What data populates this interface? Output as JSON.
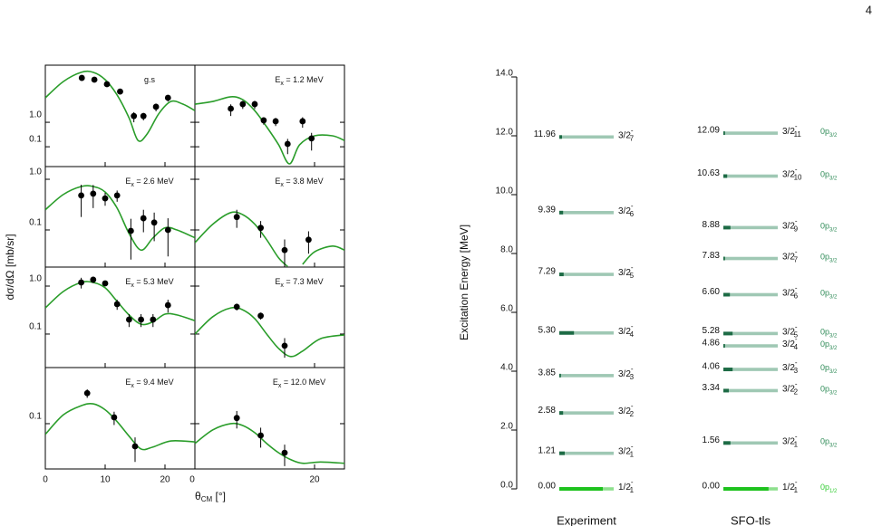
{
  "page_number": "4",
  "cross_sections": {
    "y_label": "dσ/dΩ [mb/sr]",
    "x_label": [
      "θ",
      "CM",
      " [°]"
    ],
    "xlim": [
      0,
      25
    ],
    "columns": [
      {
        "xticks": [
          0,
          10,
          20
        ]
      },
      {
        "xticks": [
          0,
          20
        ]
      }
    ],
    "rows": [
      {
        "ylim": [
          0.0155,
          215
        ],
        "yticks": [
          {
            "value": 1,
            "label": "1.0"
          },
          0.1
        ]
      },
      {
        "ylim": [
          0.0185,
          1.78
        ],
        "yticks": [
          {
            "value": 1,
            "label": "1.0"
          },
          0.1
        ]
      },
      {
        "ylim": [
          0.02,
          2.49
        ],
        "yticks": [
          {
            "value": 1,
            "label": "1.0"
          },
          0.1
        ]
      },
      {
        "ylim": [
          0.0123,
          1.34
        ],
        "yticks": [
          0.1
        ]
      }
    ],
    "panels": [
      {
        "label": [
          "g.s"
        ],
        "row": 0,
        "col": 0,
        "points": {
          "x": [
            6.1,
            8.2,
            10.3,
            12.5,
            14.8,
            16.4,
            18.5,
            20.5
          ],
          "y": [
            65,
            55,
            36,
            18,
            1.8,
            1.8,
            4.3,
            10
          ],
          "err": [
            15,
            12,
            8,
            3,
            0.8,
            0.6,
            1.5,
            3
          ]
        },
        "curve": {
          "x": [
            0,
            3,
            6,
            8,
            10,
            12,
            14,
            15.5,
            17,
            19,
            21,
            23,
            25
          ],
          "y": [
            10,
            46,
            110,
            110,
            55,
            13,
            1.5,
            0.18,
            0.33,
            2.3,
            7.1,
            5.5,
            3.0
          ]
        }
      },
      {
        "label": [
          "E",
          "x",
          " = 1.2 MeV"
        ],
        "row": 0,
        "col": 1,
        "points": {
          "x": [
            6,
            8,
            10,
            11.5,
            13.5,
            15.5,
            18,
            19.5
          ],
          "y": [
            3.6,
            5.5,
            5.5,
            1.2,
            1.1,
            0.13,
            1.1,
            0.22
          ],
          "err": [
            1.8,
            2,
            2,
            0.4,
            0.4,
            0.08,
            0.5,
            0.15
          ]
        },
        "curve": {
          "x": [
            0,
            3,
            6,
            8,
            10,
            12,
            14,
            15.8,
            17.5,
            20,
            23,
            25
          ],
          "y": [
            5.5,
            7.1,
            11,
            8.4,
            3.0,
            0.65,
            0.12,
            0.02,
            0.12,
            0.28,
            0.28,
            0.18
          ]
        }
      },
      {
        "label": [
          "E",
          "x",
          " = 2.6 MeV"
        ],
        "row": 1,
        "col": 0,
        "points": {
          "x": [
            6,
            8,
            10,
            12,
            14.3,
            16.4,
            18.2,
            20.5
          ],
          "y": [
            0.48,
            0.52,
            0.42,
            0.48,
            0.096,
            0.17,
            0.14,
            0.1
          ],
          "err": [
            0.3,
            0.25,
            0.12,
            0.12,
            0.07,
            0.08,
            0.08,
            0.07
          ]
        },
        "curve": {
          "x": [
            0,
            3,
            6,
            8,
            10,
            12,
            14,
            16,
            18,
            20,
            22,
            25
          ],
          "y": [
            0.25,
            0.5,
            0.72,
            0.72,
            0.56,
            0.27,
            0.085,
            0.04,
            0.07,
            0.11,
            0.1,
            0.07
          ]
        }
      },
      {
        "label": [
          "E",
          "x",
          " = 3.8 MeV"
        ],
        "row": 1,
        "col": 1,
        "points": {
          "x": [
            7,
            11,
            15,
            19
          ],
          "y": [
            0.18,
            0.11,
            0.04,
            0.064
          ],
          "err": [
            0.07,
            0.04,
            0.025,
            0.03
          ]
        },
        "curve": {
          "x": [
            0,
            3,
            6,
            8,
            10,
            12,
            14,
            15.5,
            16.7,
            18,
            20,
            23,
            25
          ],
          "y": [
            0.056,
            0.13,
            0.22,
            0.2,
            0.13,
            0.064,
            0.028,
            0.019,
            null,
            0.021,
            0.037,
            0.048,
            0.04
          ]
        }
      },
      {
        "label": [
          "E",
          "x",
          " = 5.3 MeV"
        ],
        "row": 2,
        "col": 0,
        "points": {
          "x": [
            6,
            8,
            10,
            12,
            14,
            16,
            18,
            20.5
          ],
          "y": [
            1.19,
            1.36,
            1.14,
            0.42,
            0.2,
            0.2,
            0.2,
            0.4
          ],
          "err": [
            0.3,
            0.2,
            0.15,
            0.1,
            0.06,
            0.06,
            0.06,
            0.12
          ]
        },
        "curve": {
          "x": [
            0,
            3,
            6,
            8,
            10,
            12,
            14,
            16,
            18,
            20,
            22,
            25
          ],
          "y": [
            0.35,
            0.77,
            1.19,
            1.19,
            0.92,
            0.48,
            0.25,
            0.16,
            0.18,
            0.26,
            0.25,
            0.19
          ]
        }
      },
      {
        "label": [
          "E",
          "x",
          " = 7.3 MeV"
        ],
        "row": 2,
        "col": 1,
        "points": {
          "x": [
            7,
            11,
            15
          ],
          "y": [
            0.37,
            0.24,
            0.057
          ],
          "err": [
            0.06,
            0.04,
            0.025
          ]
        },
        "curve": {
          "x": [
            0,
            3,
            6,
            8,
            10,
            12,
            14,
            16,
            18,
            21,
            25
          ],
          "y": [
            0.1,
            0.23,
            0.35,
            0.32,
            0.21,
            0.1,
            0.05,
            0.034,
            0.044,
            0.08,
            0.096
          ]
        }
      },
      {
        "label": [
          "E",
          "x",
          " = 9.4 MeV"
        ],
        "row": 3,
        "col": 0,
        "points": {
          "x": [
            7,
            11.5,
            15
          ],
          "y": [
            0.41,
            0.134,
            0.035
          ],
          "err": [
            0.08,
            0.04,
            0.018
          ]
        },
        "curve": {
          "x": [
            0,
            3,
            6,
            8,
            10,
            12,
            14,
            16,
            18,
            21,
            25
          ],
          "y": [
            0.061,
            0.15,
            0.23,
            0.25,
            0.19,
            0.11,
            0.056,
            0.031,
            0.034,
            0.045,
            0.043
          ]
        }
      },
      {
        "label": [
          "E",
          "x",
          " = 12.0 MeV"
        ],
        "row": 3,
        "col": 1,
        "points": {
          "x": [
            7,
            11,
            15
          ],
          "y": [
            0.13,
            0.058,
            0.026
          ],
          "err": [
            0.05,
            0.025,
            0.012
          ]
        },
        "curve": {
          "x": [
            0,
            3,
            6,
            8,
            10,
            12,
            14,
            16,
            18,
            21,
            25
          ],
          "y": [
            0.04,
            0.075,
            0.1,
            0.092,
            0.066,
            0.04,
            0.026,
            0.019,
            0.016,
            0.017,
            0.016
          ]
        }
      }
    ]
  },
  "level_scheme": {
    "y_label": "Excitation Energy [MeV]",
    "ylim": [
      0,
      14
    ],
    "yticks": [
      {
        "value": 0,
        "label": "0.0"
      },
      {
        "value": 2,
        "label": "2.0"
      },
      {
        "value": 4,
        "label": "4.0"
      },
      {
        "value": 6,
        "label": "6.0"
      },
      {
        "value": 8,
        "label": "8.0"
      },
      {
        "value": 10,
        "label": "10.0"
      },
      {
        "value": 12,
        "label": "12.0"
      },
      {
        "value": 14,
        "label": "14.0"
      }
    ],
    "columns": [
      {
        "title": "Experiment",
        "levels": [
          {
            "energy": 0,
            "energy_label": "0.00",
            "spin": "1/2",
            "parity": "-",
            "index": "1",
            "strength": 0.8
          },
          {
            "energy": 1.21,
            "energy_label": "1.21",
            "spin": "3/2",
            "parity": "-",
            "index": "1",
            "strength": 0.1
          },
          {
            "energy": 2.58,
            "energy_label": "2.58",
            "spin": "3/2",
            "parity": "-",
            "index": "2",
            "strength": 0.07
          },
          {
            "energy": 3.85,
            "energy_label": "3.85",
            "spin": "3/2",
            "parity": "-",
            "index": "3",
            "strength": 0.03
          },
          {
            "energy": 5.3,
            "energy_label": "5.30",
            "spin": "3/2",
            "parity": "-",
            "index": "4",
            "strength": 0.27
          },
          {
            "energy": 7.29,
            "energy_label": "7.29",
            "spin": "3/2",
            "parity": "-",
            "index": "5",
            "strength": 0.08
          },
          {
            "energy": 9.39,
            "energy_label": "9.39",
            "spin": "3/2",
            "parity": "-",
            "index": "6",
            "strength": 0.07
          },
          {
            "energy": 11.96,
            "energy_label": "11.96",
            "spin": "3/2",
            "parity": "-",
            "index": "7",
            "strength": 0.05
          }
        ]
      },
      {
        "title": "SFO-tls",
        "levels": [
          {
            "energy": 0,
            "energy_label": "0.00",
            "spin": "1/2",
            "parity": "-",
            "index": "1",
            "strength": 0.83,
            "orbital": [
              "0p",
              "1/2"
            ]
          },
          {
            "energy": 1.56,
            "energy_label": "1.56",
            "spin": "3/2",
            "parity": "-",
            "index": "1",
            "strength": 0.13,
            "orbital": [
              "0p",
              "3/2"
            ]
          },
          {
            "energy": 3.34,
            "energy_label": "3.34",
            "spin": "3/2",
            "parity": "-",
            "index": "2",
            "strength": 0.1,
            "orbital": [
              "0p",
              "3/2"
            ]
          },
          {
            "energy": 4.06,
            "energy_label": "4.06",
            "spin": "3/2",
            "parity": "-",
            "index": "3",
            "strength": 0.17,
            "orbital": [
              "0p",
              "3/2"
            ]
          },
          {
            "energy": 4.86,
            "energy_label": "4.86",
            "spin": "3/2",
            "parity": "-",
            "index": "4",
            "strength": 0.03,
            "orbital": [
              "0p",
              "3/2"
            ]
          },
          {
            "energy": 5.28,
            "energy_label": "5.28",
            "spin": "3/2",
            "parity": "-",
            "index": "5",
            "strength": 0.17,
            "orbital": [
              "0p",
              "3/2"
            ]
          },
          {
            "energy": 6.6,
            "energy_label": "6.60",
            "spin": "3/2",
            "parity": "-",
            "index": "6",
            "strength": 0.12,
            "orbital": [
              "0p",
              "3/2"
            ]
          },
          {
            "energy": 7.83,
            "energy_label": "7.83",
            "spin": "3/2",
            "parity": "-",
            "index": "7",
            "strength": 0.03,
            "orbital": [
              "0p",
              "3/2"
            ]
          },
          {
            "energy": 8.88,
            "energy_label": "8.88",
            "spin": "3/2",
            "parity": "-",
            "index": "9",
            "strength": 0.13,
            "orbital": [
              "0p",
              "3/2"
            ]
          },
          {
            "energy": 10.63,
            "energy_label": "10.63",
            "spin": "3/2",
            "parity": "-",
            "index": "10",
            "strength": 0.07,
            "orbital": [
              "0p",
              "3/2"
            ]
          },
          {
            "energy": 12.09,
            "energy_label": "12.09",
            "spin": "3/2",
            "parity": "-",
            "index": "11",
            "strength": 0.03,
            "orbital": [
              "0p",
              "3/2"
            ]
          }
        ]
      }
    ]
  }
}
